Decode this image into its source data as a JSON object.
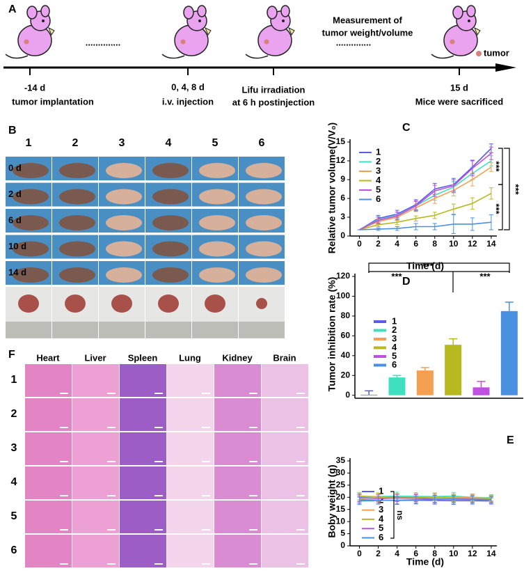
{
  "panel_labels": [
    "A",
    "B",
    "C",
    "D",
    "E",
    "F"
  ],
  "panel_a": {
    "timeline": [
      {
        "day": "-14 d",
        "event": "tumor implantation"
      },
      {
        "day": "0, 4, 8 d",
        "event": "i.v. injection"
      },
      {
        "day": "15 d",
        "event": "Mice were sacrificed"
      }
    ],
    "irradiation": [
      "Lifu irradiation",
      "at 6 h postinjection"
    ],
    "measurement": [
      "Measurement of",
      "tumor weight/volume"
    ],
    "ellipsis": "..............",
    "legend": "tumor"
  },
  "panel_b": {
    "columns": [
      "1",
      "2",
      "3",
      "4",
      "5",
      "6"
    ],
    "rows": [
      "0 d",
      "2 d",
      "6 d",
      "10 d",
      "14 d"
    ]
  },
  "panel_f": {
    "columns": [
      "Heart",
      "Liver",
      "Spleen",
      "Lung",
      "Kidney",
      "Brain"
    ],
    "rows": [
      "1",
      "2",
      "3",
      "4",
      "5",
      "6"
    ]
  },
  "chart_data": [
    {
      "type": "line",
      "y_label": "Relative tumor volume(V/V₀)",
      "x_label": "Time (d)",
      "x": [
        0,
        2,
        4,
        6,
        8,
        10,
        12,
        14
      ],
      "xlim": [
        -1,
        14.6
      ],
      "xticks": [
        0,
        2,
        4,
        6,
        8,
        10,
        12,
        14
      ],
      "ylim": [
        0,
        15
      ],
      "yticks": [
        0,
        3,
        6,
        9,
        12,
        15
      ],
      "series": [
        {
          "name": "1",
          "color": "#5b5be8",
          "values": [
            1,
            2.8,
            3.5,
            5,
            7.5,
            8.2,
            11,
            14
          ],
          "errors": [
            0,
            0.5,
            0.6,
            0.8,
            0.9,
            1,
            1.1,
            0.7
          ]
        },
        {
          "name": "2",
          "color": "#3fe0bf",
          "values": [
            1,
            2.6,
            3.3,
            4.8,
            6.5,
            7.8,
            10,
            12
          ],
          "errors": [
            0,
            0.5,
            0.5,
            0.7,
            0.8,
            0.9,
            1,
            0.8
          ]
        },
        {
          "name": "3",
          "color": "#f5a050",
          "values": [
            1,
            2.3,
            3,
            4.5,
            6,
            7.3,
            9,
            11
          ],
          "errors": [
            0,
            0.4,
            0.5,
            0.6,
            0.8,
            0.9,
            1,
            0.7
          ]
        },
        {
          "name": "4",
          "color": "#b8b820",
          "values": [
            1,
            1.8,
            2.2,
            2.8,
            3.3,
            4.3,
            5.2,
            6.8
          ],
          "errors": [
            0,
            0.3,
            0.4,
            0.4,
            0.5,
            0.8,
            0.9,
            0.9
          ]
        },
        {
          "name": "5",
          "color": "#c050e0",
          "values": [
            1,
            2.5,
            3.2,
            4.8,
            7.2,
            8,
            10.8,
            13.2
          ],
          "errors": [
            0,
            0.5,
            0.6,
            0.8,
            0.9,
            1,
            1.2,
            1
          ]
        },
        {
          "name": "6",
          "color": "#4a90e0",
          "values": [
            1,
            1.1,
            1.2,
            1.5,
            1.5,
            1.9,
            1.9,
            2.2
          ],
          "errors": [
            0,
            0.2,
            0.3,
            0.5,
            0.5,
            1.5,
            1,
            1.2
          ]
        }
      ],
      "annotations": [
        "***",
        "***",
        "***"
      ]
    },
    {
      "type": "bar",
      "y_label": "Tumor inhibition rate (%)",
      "categories": [
        "1",
        "2",
        "3",
        "4",
        "5",
        "6"
      ],
      "colors": [
        "#5b5be8",
        "#3fe0bf",
        "#f5a050",
        "#b8b820",
        "#c050e0",
        "#4a90e0"
      ],
      "values": [
        0.5,
        18,
        25,
        51,
        8,
        85
      ],
      "errors": [
        4,
        2,
        3,
        6,
        6,
        9
      ],
      "ylim": [
        -3,
        120
      ],
      "yticks": [
        0,
        20,
        40,
        60,
        80,
        100,
        120
      ],
      "annotations": [
        "***",
        "***",
        "***"
      ]
    },
    {
      "type": "line",
      "y_label": "Boby weight (g)",
      "x_label": "Time (d)",
      "x": [
        0,
        2,
        4,
        6,
        8,
        10,
        12,
        14
      ],
      "xlim": [
        -1,
        14.6
      ],
      "xticks": [
        0,
        2,
        4,
        6,
        8,
        10,
        12,
        14
      ],
      "ylim": [
        0,
        35
      ],
      "yticks": [
        0,
        5,
        10,
        15,
        20,
        25,
        30,
        35
      ],
      "series": [
        {
          "name": "1",
          "color": "#5b5be8",
          "values": [
            19,
            18.8,
            18.7,
            18.8,
            18.7,
            18.6,
            18.6,
            18.5
          ],
          "errors": [
            1.5,
            1.5,
            1.6,
            1.5,
            1.5,
            1.5,
            1.4,
            1.3
          ]
        },
        {
          "name": "2",
          "color": "#3fe0bf",
          "values": [
            20,
            20.3,
            20.5,
            20.4,
            20.3,
            20.5,
            20,
            19.8
          ],
          "errors": [
            1.5,
            1.5,
            1.6,
            1.5,
            1.5,
            1.5,
            1.4,
            1.3
          ]
        },
        {
          "name": "3",
          "color": "#f5a050",
          "values": [
            19.5,
            19.8,
            19.9,
            20,
            20.1,
            19.9,
            19.8,
            19.6
          ],
          "errors": [
            1.5,
            1.5,
            1.5,
            1.5,
            1.5,
            1.5,
            1.4,
            1.3
          ]
        },
        {
          "name": "4",
          "color": "#b8b820",
          "values": [
            20.5,
            20.2,
            20,
            19.8,
            20,
            19.7,
            19.5,
            19.3
          ],
          "errors": [
            1.5,
            1.5,
            1.5,
            1.5,
            1.5,
            1.5,
            1.4,
            1.3
          ]
        },
        {
          "name": "5",
          "color": "#c050e0",
          "values": [
            19.8,
            19.5,
            19.7,
            19.6,
            19.4,
            19.3,
            19.2,
            19
          ],
          "errors": [
            1.5,
            1.5,
            1.5,
            1.5,
            1.5,
            1.5,
            1.4,
            1.3
          ]
        },
        {
          "name": "6",
          "color": "#4a90e0",
          "values": [
            18.5,
            18.7,
            18.8,
            19,
            19.2,
            19.2,
            19.1,
            19
          ],
          "errors": [
            1.5,
            1.5,
            1.5,
            1.5,
            1.5,
            1.5,
            1.4,
            1.3
          ]
        }
      ],
      "annotations": [
        "ns"
      ]
    }
  ]
}
